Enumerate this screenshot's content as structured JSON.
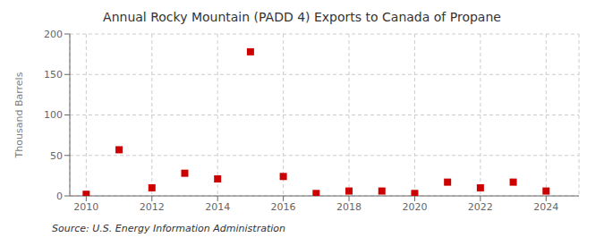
{
  "chart_data": {
    "type": "scatter",
    "title": "Annual Rocky Mountain (PADD 4) Exports to Canada of Propane",
    "ylabel": "Thousand Barrels",
    "annotation": "Source: U.S. Energy Information Administration",
    "x": [
      2010,
      2011,
      2012,
      2013,
      2014,
      2015,
      2016,
      2017,
      2018,
      2019,
      2020,
      2021,
      2022,
      2023,
      2024
    ],
    "values": [
      2,
      57,
      10,
      28,
      21,
      178,
      24,
      3,
      6,
      6,
      3,
      17,
      10,
      17,
      6
    ],
    "color": "#cc0000",
    "marker": "square",
    "xlim": [
      2009.5,
      2025.0
    ],
    "ylim": [
      0,
      200
    ],
    "xticks": [
      2010,
      2012,
      2014,
      2016,
      2018,
      2020,
      2022,
      2024
    ],
    "yticks": [
      0,
      50,
      100,
      150,
      200
    ],
    "grid": true
  }
}
